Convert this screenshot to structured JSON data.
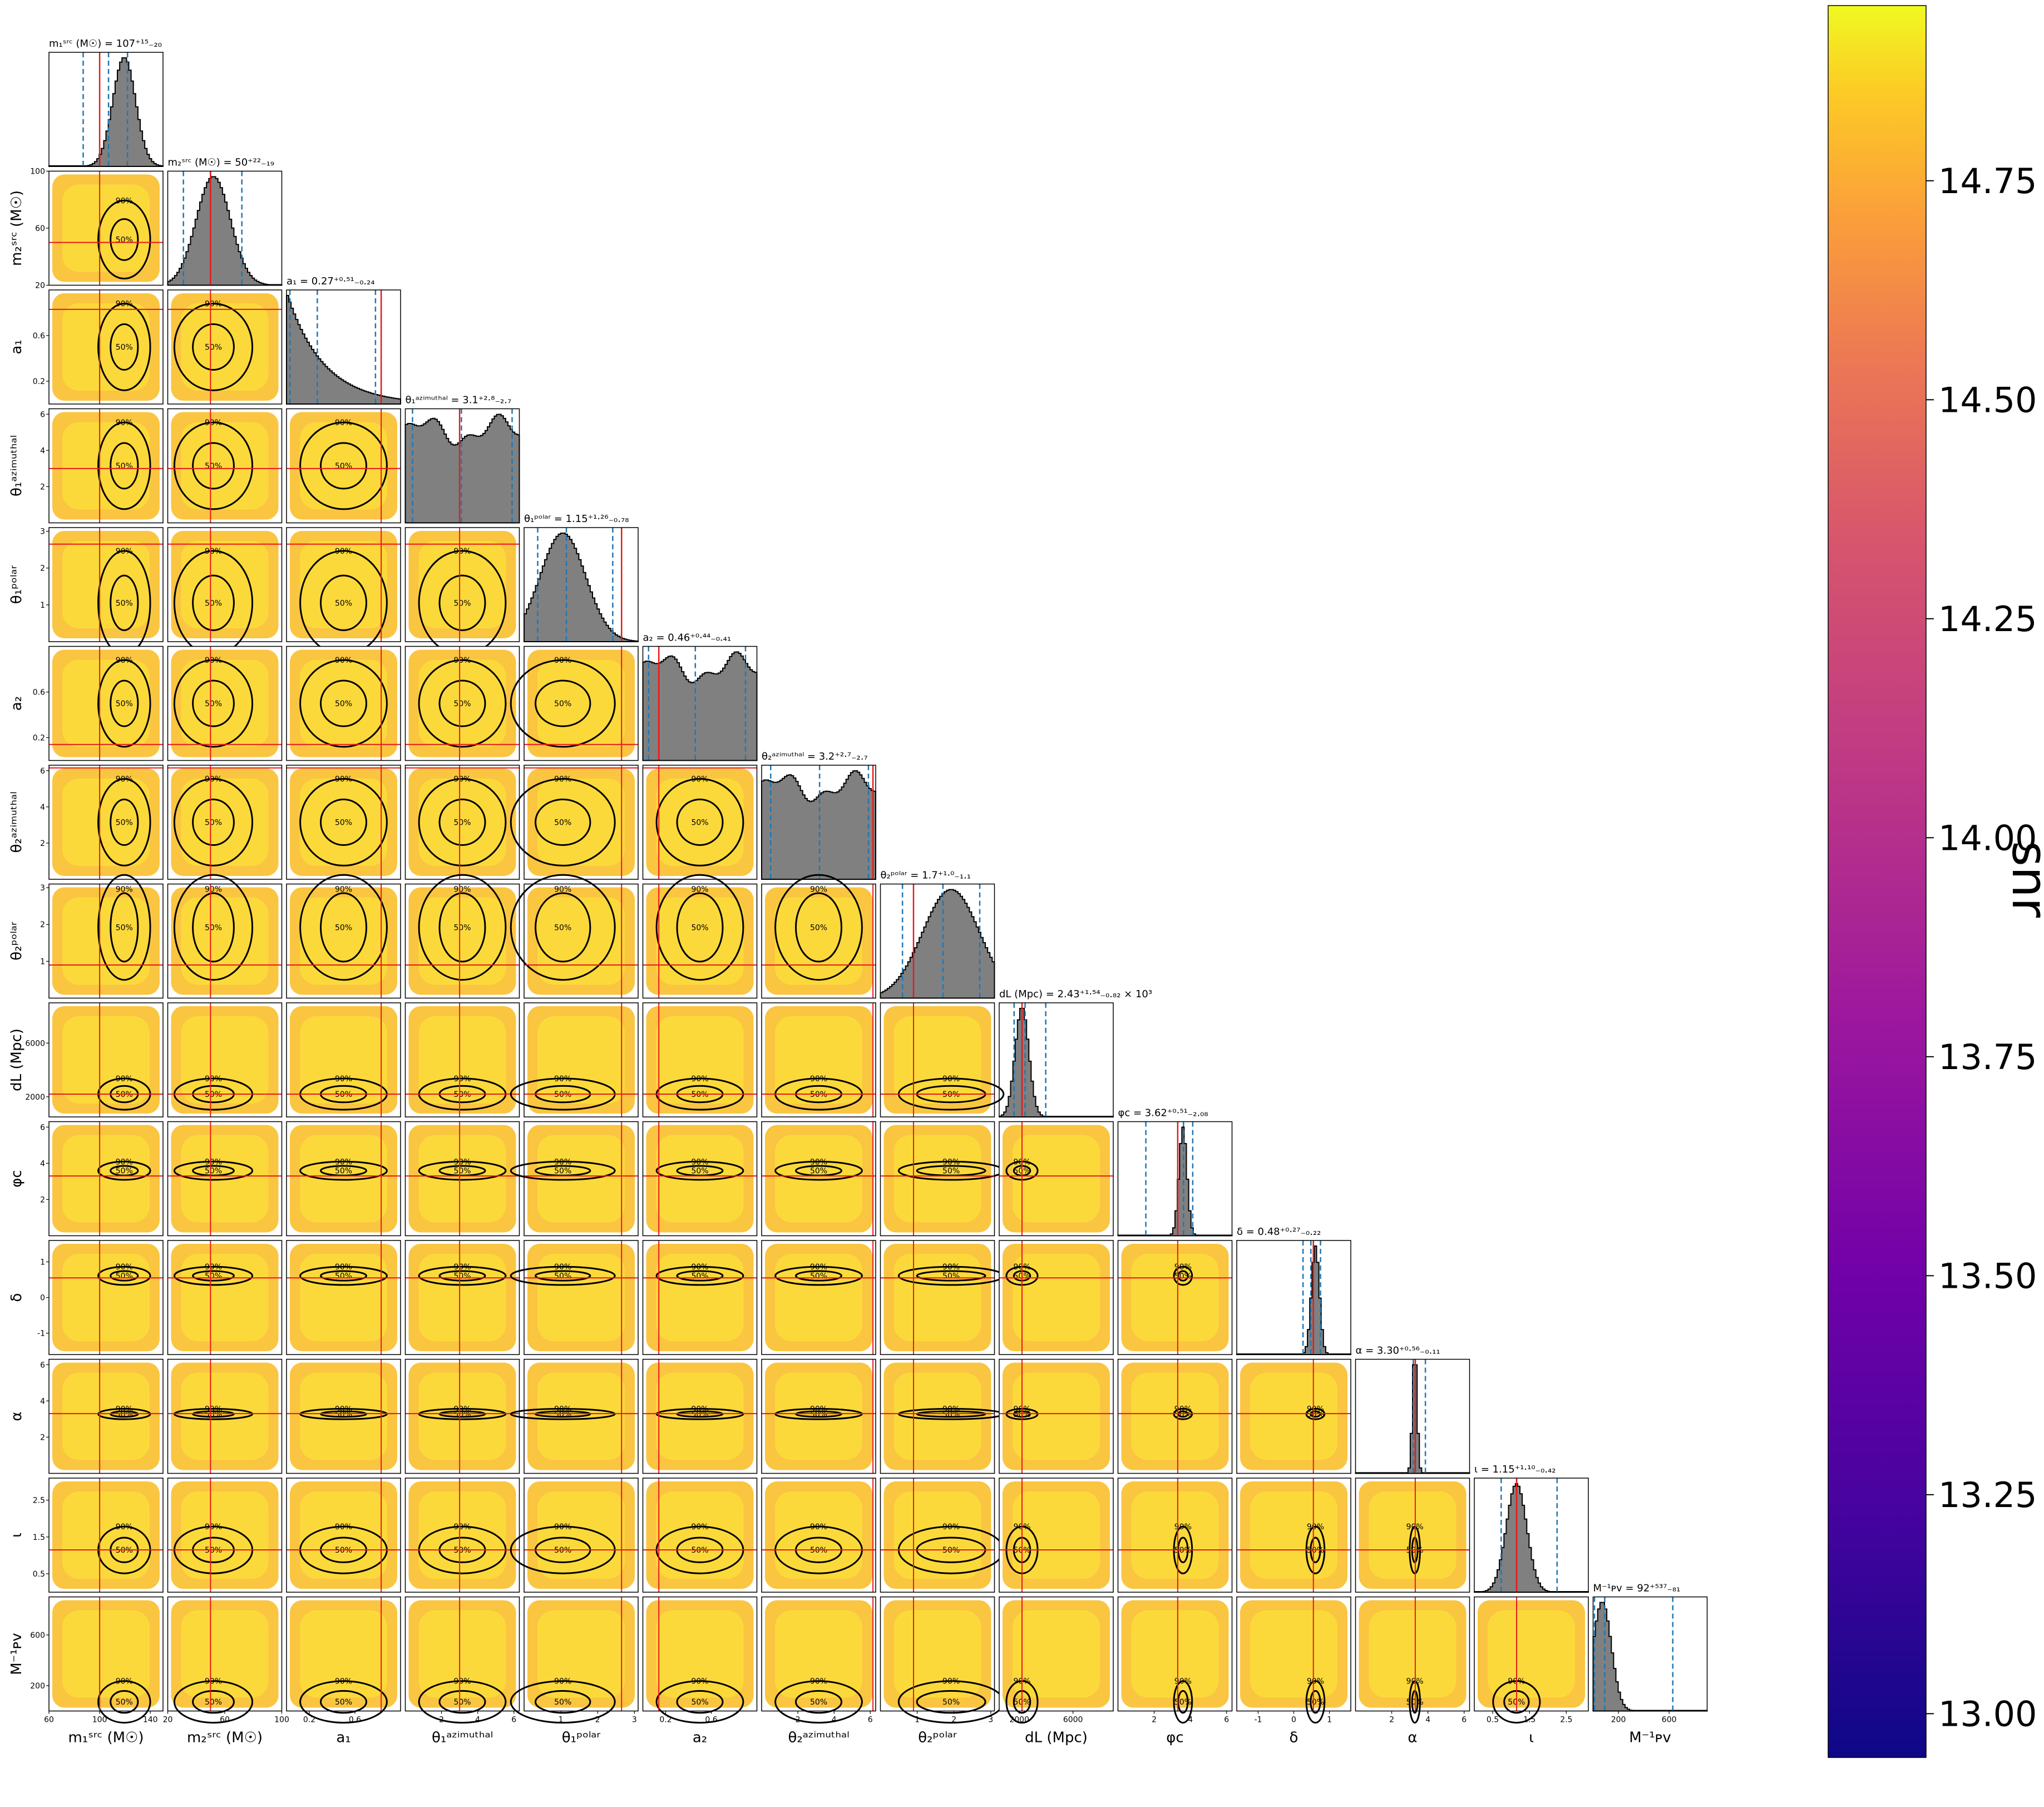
{
  "chart_data": {
    "type": "corner",
    "parameters": [
      {
        "key": "m1_src",
        "label": "m₁ˢʳᶜ (M☉)",
        "title": "m₁ˢʳᶜ (M☉) = 107⁺¹⁵₋₂₀",
        "range": [
          60,
          150
        ],
        "ticks": [
          60,
          100,
          140
        ],
        "truth": 100,
        "median": 107,
        "lo": 87,
        "hi": 122,
        "peak": 0.66,
        "width": 0.1,
        "shape": "gauss"
      },
      {
        "key": "m2_src",
        "label": "m₂ˢʳᶜ (M☉)",
        "title": "m₂ˢʳᶜ (M☉) = 50⁺²²₋₁₉",
        "range": [
          20,
          100
        ],
        "ticks": [
          20,
          60,
          100
        ],
        "truth": 50,
        "median": 50,
        "lo": 31,
        "hi": 72,
        "peak": 0.4,
        "width": 0.15,
        "shape": "gauss"
      },
      {
        "key": "a1",
        "label": "a₁",
        "title": "a₁ = 0.27⁺⁰·⁵¹₋₀.₂₄",
        "range": [
          0,
          1
        ],
        "ticks": [
          0.2,
          0.6
        ],
        "truth": 0.83,
        "median": 0.27,
        "lo": 0.03,
        "hi": 0.78,
        "shape": "decay"
      },
      {
        "key": "theta1_az",
        "label": "θ₁ᵃᶻⁱᵐᵘᵗʰᵃˡ",
        "title": "θ₁ᵃᶻⁱᵐᵘᵗʰᵃˡ = 3.1⁺²·⁸₋₂.₇",
        "range": [
          0,
          6.3
        ],
        "ticks": [
          2,
          4,
          6
        ],
        "truth": 3.0,
        "median": 3.1,
        "lo": 0.4,
        "hi": 5.9,
        "shape": "flat"
      },
      {
        "key": "theta1_polar",
        "label": "θ₁ᵖᵒˡᵃʳ",
        "title": "θ₁ᵖᵒˡᵃʳ = 1.15⁺¹·²⁶₋₀.₇₈",
        "range": [
          0,
          3.1
        ],
        "ticks": [
          1,
          2,
          3
        ],
        "truth": 2.65,
        "median": 1.15,
        "lo": 0.37,
        "hi": 2.41,
        "peak": 0.34,
        "width": 0.2,
        "shape": "gauss"
      },
      {
        "key": "a2",
        "label": "a₂",
        "title": "a₂ = 0.46⁺⁰·⁴⁴₋₀.₄₁",
        "range": [
          0,
          1
        ],
        "ticks": [
          0.2,
          0.6
        ],
        "truth": 0.14,
        "median": 0.46,
        "lo": 0.05,
        "hi": 0.9,
        "shape": "flat"
      },
      {
        "key": "theta2_az",
        "label": "θ₂ᵃᶻⁱᵐᵘᵗʰᵃˡ",
        "title": "θ₂ᵃᶻⁱᵐᵘᵗʰᵃˡ = 3.2⁺²·⁷₋₂.₇",
        "range": [
          0,
          6.3
        ],
        "ticks": [
          2,
          4,
          6
        ],
        "truth": 6.15,
        "median": 3.2,
        "lo": 0.5,
        "hi": 5.9,
        "shape": "flat"
      },
      {
        "key": "theta2_polar",
        "label": "θ₂ᵖᵒˡᵃʳ",
        "title": "θ₂ᵖᵒˡᵃʳ = 1.7⁺¹·⁰₋₁.₁",
        "range": [
          0,
          3.1
        ],
        "ticks": [
          1,
          2,
          3
        ],
        "truth": 0.9,
        "median": 1.7,
        "lo": 0.6,
        "hi": 2.7,
        "peak": 0.62,
        "width": 0.25,
        "shape": "gauss"
      },
      {
        "key": "dL",
        "label": "dL (Mpc)",
        "title": "dL (Mpc) = 2.43⁺¹·⁵⁴₋₀.₈₂ × 10³",
        "range": [
          500,
          9000
        ],
        "ticks": [
          2000,
          6000
        ],
        "truth": 2200,
        "median": 2430,
        "lo": 1610,
        "hi": 3970,
        "peak": 0.2,
        "width": 0.06,
        "shape": "gauss"
      },
      {
        "key": "phi_c",
        "label": "φc",
        "title": "φc = 3.62⁺⁰·⁵¹₋₂.₀₈",
        "range": [
          0,
          6.3
        ],
        "ticks": [
          2,
          4,
          6
        ],
        "truth": 3.3,
        "median": 3.62,
        "lo": 1.54,
        "hi": 4.13,
        "peak": 0.57,
        "width": 0.035,
        "shape": "gauss"
      },
      {
        "key": "delta",
        "label": "δ",
        "title": "δ = 0.48⁺⁰·²⁷₋₀.₂₂",
        "range": [
          -1.6,
          1.6
        ],
        "ticks": [
          -1,
          0,
          1
        ],
        "truth": 0.55,
        "median": 0.48,
        "lo": 0.26,
        "hi": 0.75,
        "peak": 0.69,
        "width": 0.035,
        "shape": "gauss"
      },
      {
        "key": "alpha",
        "label": "α",
        "title": "α = 3.30⁺⁰·⁵⁶₋₀.₁₁",
        "range": [
          0,
          6.3
        ],
        "ticks": [
          2,
          4,
          6
        ],
        "truth": 3.3,
        "median": 3.3,
        "lo": 3.19,
        "hi": 3.86,
        "peak": 0.52,
        "width": 0.02,
        "shape": "gauss"
      },
      {
        "key": "iota",
        "label": "ι",
        "title": "ι = 1.15⁺¹·¹⁰₋₀.₄₂",
        "range": [
          0,
          3.1
        ],
        "ticks": [
          0.5,
          1.5,
          2.5
        ],
        "truth": 1.15,
        "median": 1.15,
        "lo": 0.73,
        "hi": 2.25,
        "peak": 0.37,
        "width": 0.09,
        "shape": "gauss"
      },
      {
        "key": "M_PV_inv",
        "label": "M⁻¹ᴘᴠ",
        "title": "M⁻¹ᴘᴠ = 92⁺⁵³⁷₋₈₁",
        "range": [
          0,
          900
        ],
        "ticks": [
          200,
          600
        ],
        "truth": null,
        "median": 92,
        "lo": 11,
        "hi": 629,
        "peak": 0.08,
        "width": 0.08,
        "shape": "gauss"
      }
    ],
    "contour_levels": [
      "50%",
      "90%"
    ],
    "truth_color": "#e8191a",
    "quantile_color": "#1f77b4",
    "hist_color": "#808080",
    "colorbar": {
      "label": "snr",
      "range": [
        12.95,
        14.95
      ],
      "ticks": [
        "13.00",
        "13.25",
        "13.50",
        "13.75",
        "14.00",
        "14.25",
        "14.50",
        "14.75"
      ],
      "colormap": "plasma"
    }
  }
}
